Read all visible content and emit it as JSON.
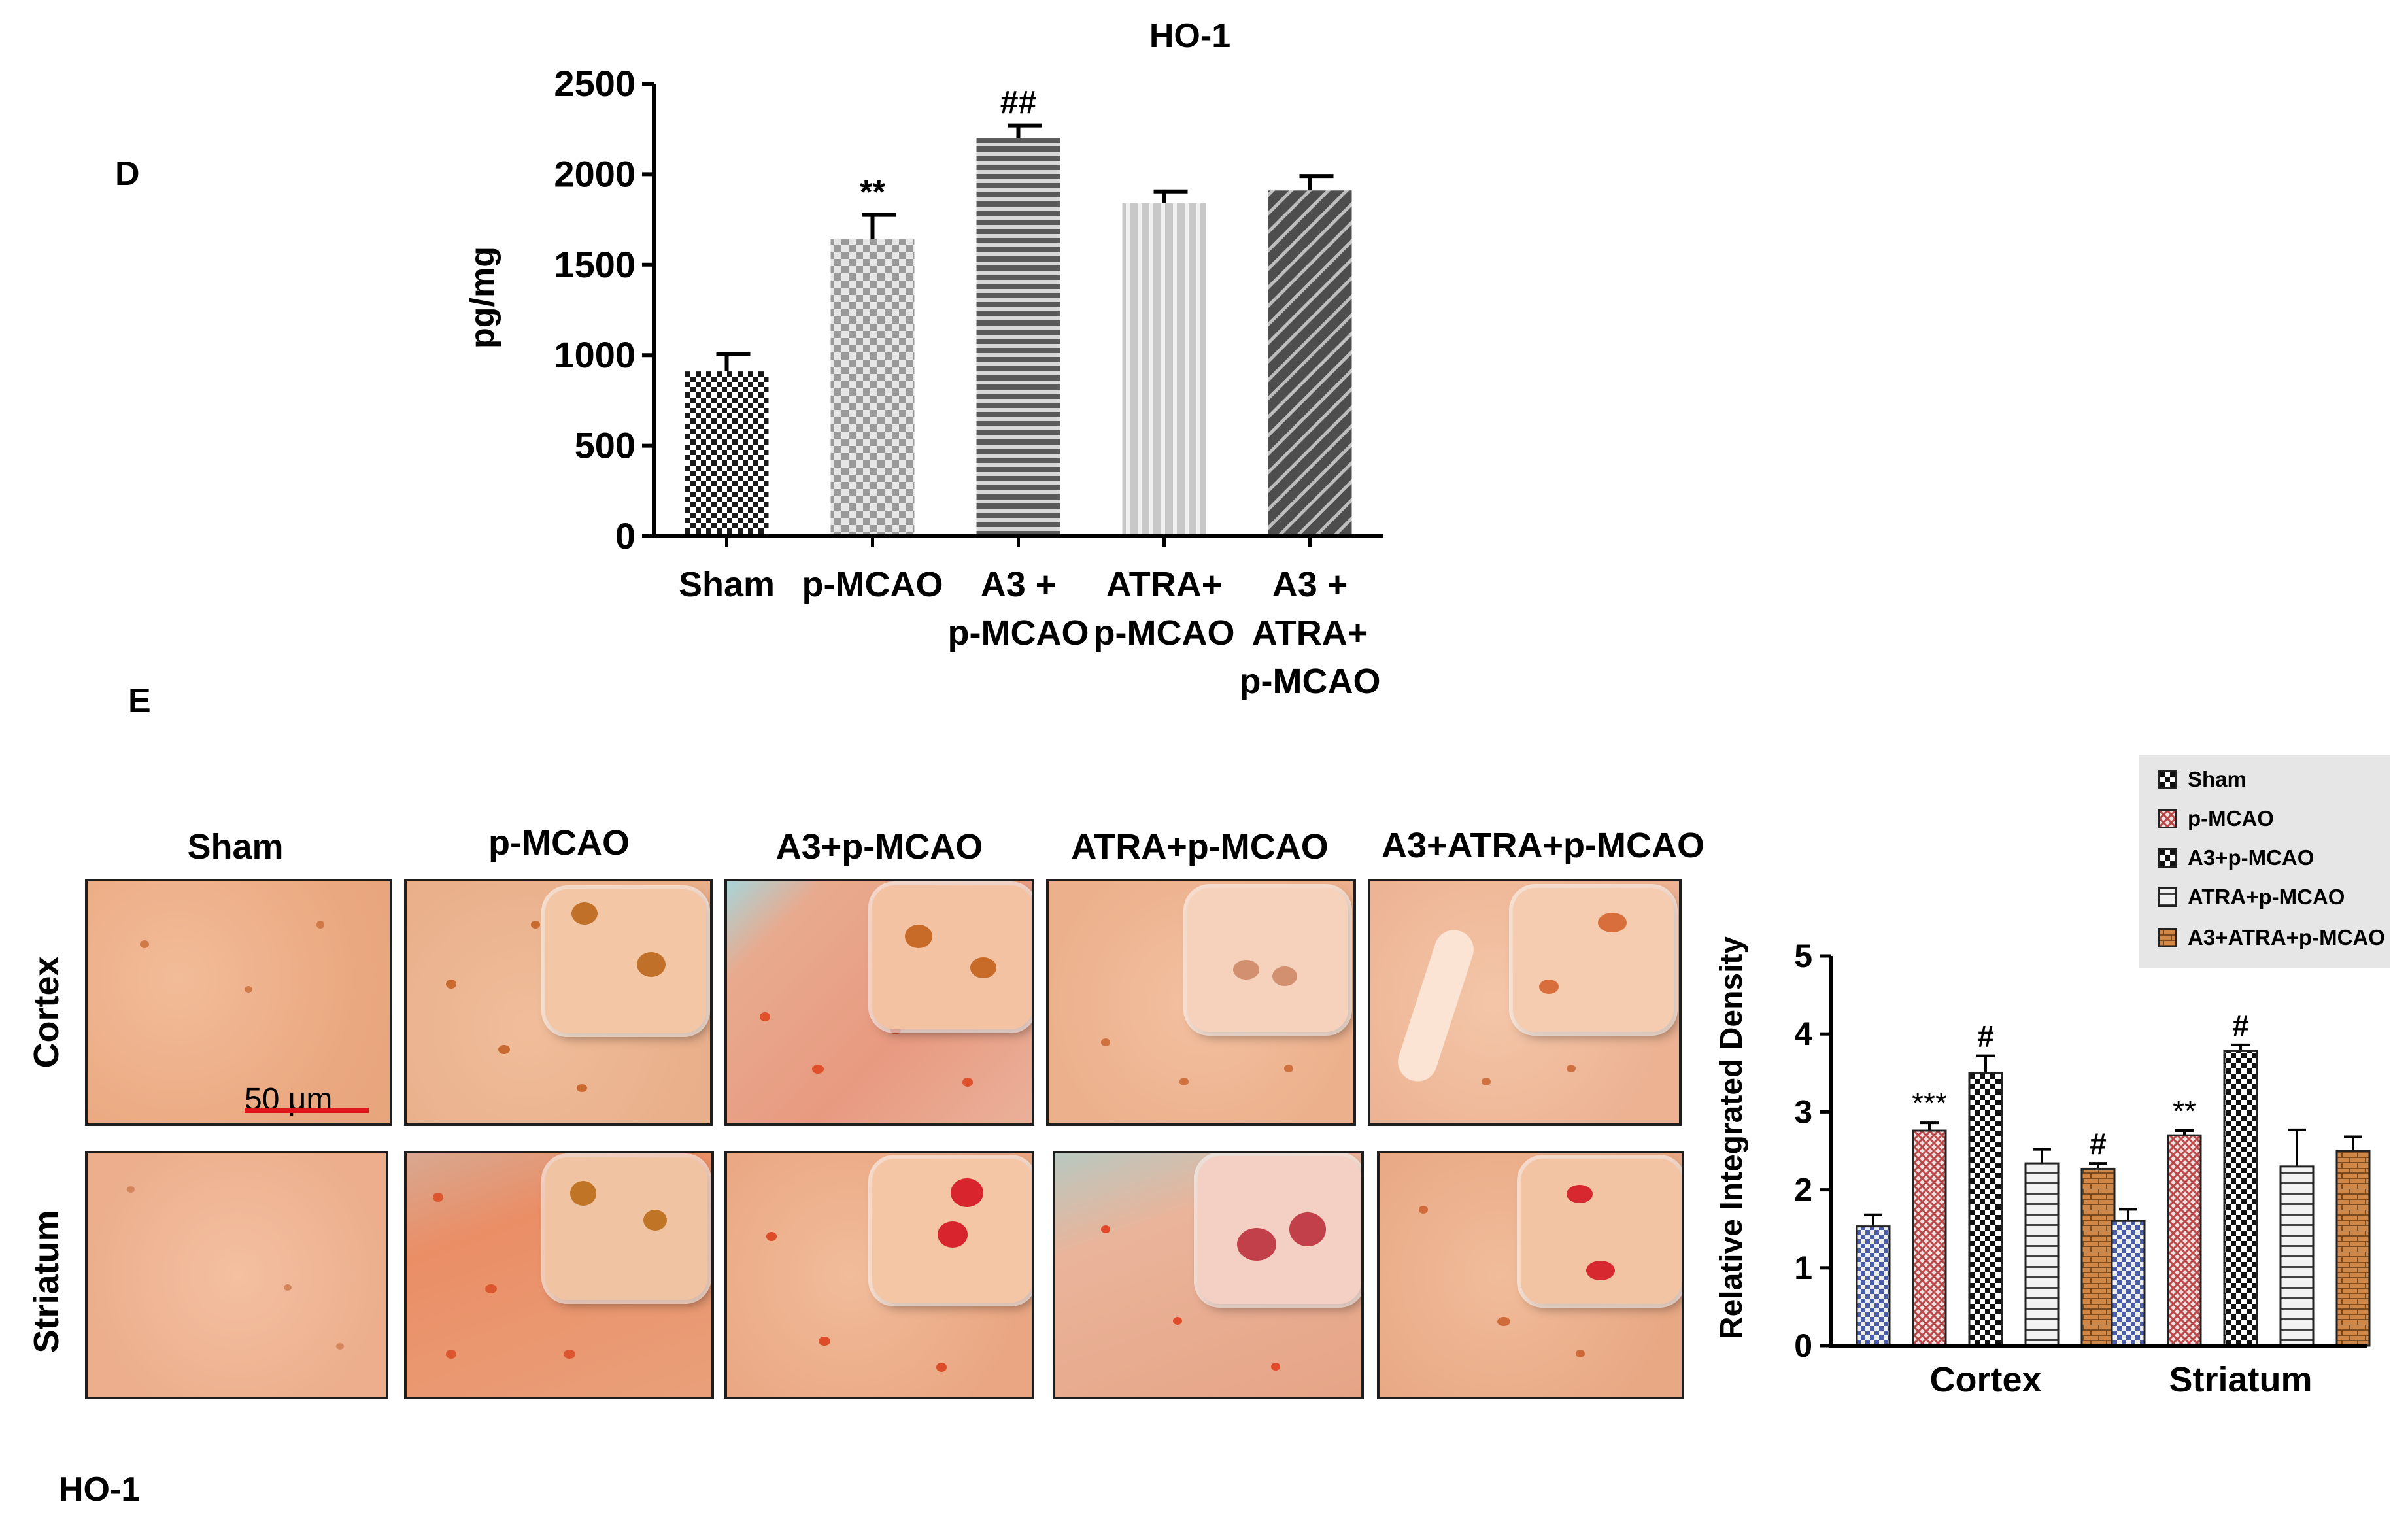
{
  "panel_d": {
    "letter": "D"
  },
  "panel_e": {
    "letter": "E"
  },
  "footer_label": "HO-1",
  "scale_bar_label": "50 μm",
  "micrographs": {
    "columns": [
      "Sham",
      "p-MCAO",
      "A3+p-MCAO",
      "ATRA+p-MCAO",
      "A3+ATRA+p-MCAO"
    ],
    "rows": [
      "Cortex",
      "Striatum"
    ]
  },
  "colors": {
    "bar_dark": "#1a1a1a",
    "bar_light_checker": "#9a9a9a",
    "bar_stripes": "#5a5a5a",
    "bar_vertical": "#c8c8c8",
    "bar_diagonal": "#4d4d4d",
    "tissue": "#efb48e",
    "stain": "#d9451f",
    "scale_bar": "#e0151b",
    "brick": "#d08848",
    "crosshatch_red": "#b84848",
    "checker_blue": "#4a5ea8"
  },
  "chart_data": [
    {
      "type": "bar",
      "title": "HO-1",
      "ylabel": "pg/mg",
      "xlabel": "",
      "ylim": [
        0,
        2500
      ],
      "yticks": [
        "0",
        "500",
        "1000",
        "1500",
        "2000",
        "2500"
      ],
      "categories": [
        "Sham",
        "p-MCAO",
        "A3 +\np-MCAO",
        "ATRA+\np-MCAO",
        "A3 +\nATRA+\np-MCAO"
      ],
      "values": [
        910,
        1640,
        2200,
        1840,
        1910
      ],
      "errors": [
        95,
        135,
        70,
        65,
        80
      ],
      "annotations": [
        "",
        "**",
        "##",
        "",
        ""
      ],
      "patterns": [
        "fine-checker-dark",
        "checker-light",
        "horizontal-stripes",
        "vertical-stripes",
        "diagonal-stripes"
      ],
      "grid": false
    },
    {
      "type": "bar",
      "title": "",
      "ylabel": "Relative Integrated Density",
      "xlabel": "",
      "ylim": [
        0,
        5
      ],
      "yticks": [
        "0",
        "1",
        "2",
        "3",
        "4",
        "5"
      ],
      "categories": [
        "Cortex",
        "Striatum"
      ],
      "series": [
        {
          "name": "Sham",
          "values": [
            1.53,
            1.6
          ],
          "errors": [
            0.15,
            0.15
          ],
          "annotations": [
            "",
            ""
          ],
          "pattern": "checker-blue"
        },
        {
          "name": "p-MCAO",
          "values": [
            2.76,
            2.7
          ],
          "errors": [
            0.1,
            0.06
          ],
          "annotations": [
            "***",
            "**"
          ],
          "pattern": "crosshatch-red"
        },
        {
          "name": "A3+p-MCAO",
          "values": [
            3.5,
            3.78
          ],
          "errors": [
            0.22,
            0.08
          ],
          "annotations": [
            "#",
            "#"
          ],
          "pattern": "checker-black"
        },
        {
          "name": "ATRA+p-MCAO",
          "values": [
            2.34,
            2.3
          ],
          "errors": [
            0.18,
            0.47
          ],
          "annotations": [
            "",
            ""
          ],
          "pattern": "horizontal-grey"
        },
        {
          "name": "A3+ATRA+p-MCAO",
          "values": [
            2.27,
            2.5
          ],
          "errors": [
            0.07,
            0.18
          ],
          "annotations": [
            "#",
            ""
          ],
          "pattern": "brick-orange"
        }
      ],
      "legend": "top-right",
      "grid": false
    }
  ]
}
